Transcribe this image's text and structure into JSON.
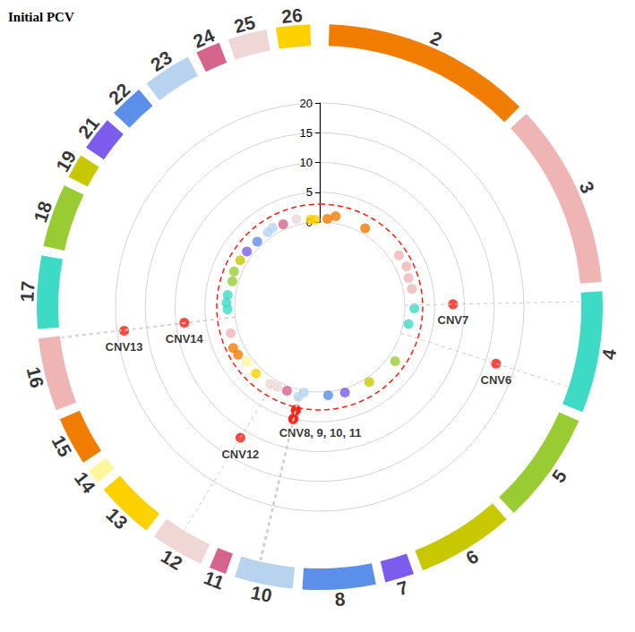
{
  "chart_data": {
    "type": "circular_manhattan",
    "title": "Initial PCV",
    "ylim": [
      0,
      20
    ],
    "yticks": [
      0,
      5,
      10,
      15,
      20
    ],
    "grid": true,
    "threshold": {
      "value": 3,
      "color": "#ff1a0f",
      "line_style": "dashed"
    },
    "chromosomes": [
      {
        "name": "2",
        "length": 43,
        "color": "#f07c00"
      },
      {
        "name": "3",
        "length": 38,
        "color": "#efb5b5"
      },
      {
        "name": "4",
        "length": 25,
        "color": "#3ddbc6"
      },
      {
        "name": "5",
        "length": 23,
        "color": "#99cc33"
      },
      {
        "name": "6",
        "length": 20,
        "color": "#c8c800"
      },
      {
        "name": "7",
        "length": 6,
        "color": "#7b5cec"
      },
      {
        "name": "8",
        "length": 15,
        "color": "#5b8fea"
      },
      {
        "name": "10",
        "length": 12,
        "color": "#b8d3ee"
      },
      {
        "name": "11",
        "length": 3.5,
        "color": "#d6638a"
      },
      {
        "name": "12",
        "length": 11,
        "color": "#eed7d5"
      },
      {
        "name": "13",
        "length": 12,
        "color": "#fdd000"
      },
      {
        "name": "14",
        "length": 3,
        "color": "#fff59a"
      },
      {
        "name": "15",
        "length": 10,
        "color": "#f07c00"
      },
      {
        "name": "16",
        "length": 15,
        "color": "#efb5b5"
      },
      {
        "name": "17",
        "length": 15,
        "color": "#3ddbc6"
      },
      {
        "name": "18",
        "length": 13,
        "color": "#99cc33"
      },
      {
        "name": "19",
        "length": 5,
        "color": "#c8c800"
      },
      {
        "name": "21",
        "length": 7,
        "color": "#7b5cec"
      },
      {
        "name": "22",
        "length": 7,
        "color": "#5b8fea"
      },
      {
        "name": "23",
        "length": 10,
        "color": "#b8d3ee"
      },
      {
        "name": "24",
        "length": 5,
        "color": "#d6638a"
      },
      {
        "name": "25",
        "length": 8,
        "color": "#eed7d5"
      },
      {
        "name": "26",
        "length": 7,
        "color": "#fdd000"
      }
    ],
    "points": [
      {
        "chromosome": "2",
        "position": 3,
        "value": 0.6
      },
      {
        "chromosome": "2",
        "position": 8,
        "value": 1.2
      },
      {
        "chromosome": "2",
        "position": 28,
        "value": 1.0
      },
      {
        "chromosome": "3",
        "position": 10,
        "value": 1.6
      },
      {
        "chromosome": "3",
        "position": 18,
        "value": 1.8
      },
      {
        "chromosome": "3",
        "position": 25,
        "value": 1.4
      },
      {
        "chromosome": "3",
        "position": 32,
        "value": 1.5
      },
      {
        "chromosome": "4",
        "position": 2,
        "value": 8.1,
        "label": "CNV7"
      },
      {
        "chromosome": "4",
        "position": 4,
        "value": 1.6
      },
      {
        "chromosome": "4",
        "position": 14,
        "value": 0.9
      },
      {
        "chromosome": "4",
        "position": 21,
        "value": 16.8,
        "label": "CNV6"
      },
      {
        "chromosome": "5",
        "position": 12,
        "value": 1.3
      },
      {
        "chromosome": "6",
        "position": 8,
        "value": 0.8
      },
      {
        "chromosome": "7",
        "position": 3,
        "value": 0.7
      },
      {
        "chromosome": "8",
        "position": 6,
        "value": 0.6
      },
      {
        "chromosome": "10",
        "position": 5,
        "value": 0.3
      },
      {
        "chromosome": "10",
        "position": 8,
        "value": 1.2
      },
      {
        "chromosome": "10",
        "position": 7.5,
        "value": 3.4
      },
      {
        "chromosome": "10",
        "position": 7.6,
        "value": 3.6
      },
      {
        "chromosome": "10",
        "position": 7.8,
        "value": 4.9
      },
      {
        "chromosome": "10",
        "position": 7.9,
        "value": 5.1,
        "label": "CNV8, 9, 10, 11"
      },
      {
        "chromosome": "11",
        "position": 2,
        "value": 0.8
      },
      {
        "chromosome": "12",
        "position": 3,
        "value": 0.9
      },
      {
        "chromosome": "12",
        "position": 6.4,
        "value": 11.4,
        "label": "CNV12"
      },
      {
        "chromosome": "12",
        "position": 8,
        "value": 1.1
      },
      {
        "chromosome": "13",
        "position": 6,
        "value": 1.2
      },
      {
        "chromosome": "14",
        "position": 1.5,
        "value": 1.0
      },
      {
        "chromosome": "15",
        "position": 3,
        "value": 1.6
      },
      {
        "chromosome": "15",
        "position": 8,
        "value": 1.8
      },
      {
        "chromosome": "16",
        "position": 5,
        "value": 1.3
      },
      {
        "chromosome": "16",
        "position": 14.5,
        "value": 18.8,
        "label": "CNV13"
      },
      {
        "chromosome": "16",
        "position": 14.8,
        "value": 8.6,
        "label": "CNV14"
      },
      {
        "chromosome": "17",
        "position": 3,
        "value": 1.2
      },
      {
        "chromosome": "17",
        "position": 7,
        "value": 1.4
      },
      {
        "chromosome": "17",
        "position": 12,
        "value": 1.3
      },
      {
        "chromosome": "18",
        "position": 4,
        "value": 1.0
      },
      {
        "chromosome": "18",
        "position": 10,
        "value": 1.3
      },
      {
        "chromosome": "19",
        "position": 3,
        "value": 1.2
      },
      {
        "chromosome": "21",
        "position": 3,
        "value": 1.1
      },
      {
        "chromosome": "22",
        "position": 3,
        "value": 0.9
      },
      {
        "chromosome": "23",
        "position": 3,
        "value": 1.0
      },
      {
        "chromosome": "23",
        "position": 7,
        "value": 1.2
      },
      {
        "chromosome": "24",
        "position": 2,
        "value": 0.9
      },
      {
        "chromosome": "25",
        "position": 4,
        "value": 1.0
      },
      {
        "chromosome": "26",
        "position": 3,
        "value": 0.5
      },
      {
        "chromosome": "26",
        "position": 6,
        "value": 0.4
      }
    ]
  }
}
